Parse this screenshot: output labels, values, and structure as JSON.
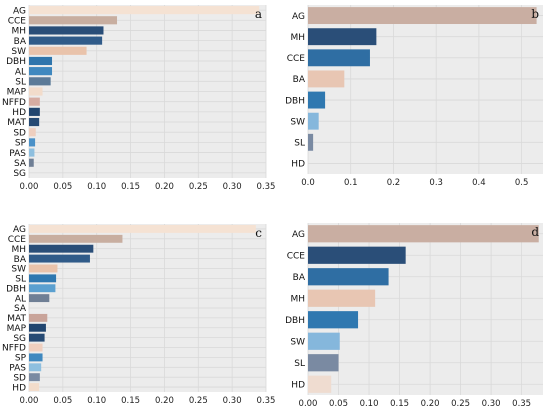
{
  "chart_data": [
    {
      "type": "bar",
      "orientation": "horizontal",
      "panel_label": "a",
      "categories": [
        "AG",
        "CCE",
        "MH",
        "BA",
        "SW",
        "DBH",
        "AL",
        "SL",
        "MAP",
        "NFFD",
        "HD",
        "MAT",
        "SD",
        "SP",
        "PAS",
        "SA",
        "SG"
      ],
      "values": [
        0.34,
        0.13,
        0.11,
        0.108,
        0.085,
        0.034,
        0.034,
        0.032,
        0.02,
        0.016,
        0.016,
        0.015,
        0.01,
        0.009,
        0.008,
        0.007,
        0.0
      ],
      "colors": [
        "#f5e2d3",
        "#c8aea0",
        "#2a4e78",
        "#305b89",
        "#e9c3ab",
        "#2f75ac",
        "#3f88bf",
        "#5b7a98",
        "#f2dccb",
        "#d6aca2",
        "#21456f",
        "#264a74",
        "#efcfbf",
        "#4a91c8",
        "#8ebfdf",
        "#6f7f95",
        "#e8d8cc"
      ],
      "xlim": [
        0,
        0.35
      ],
      "xticks": [
        "0.00",
        "0.05",
        "0.10",
        "0.15",
        "0.20",
        "0.25",
        "0.30",
        "0.35"
      ],
      "grid": true
    },
    {
      "type": "bar",
      "orientation": "horizontal",
      "panel_label": "b",
      "categories": [
        "AG",
        "MH",
        "CCE",
        "BA",
        "DBH",
        "SW",
        "SL",
        "HD"
      ],
      "values": [
        0.535,
        0.16,
        0.145,
        0.085,
        0.04,
        0.025,
        0.012,
        0.0
      ],
      "colors": [
        "#c9aea2",
        "#2a4e78",
        "#2f6ea3",
        "#e8c6b3",
        "#2f78b0",
        "#85b7dc",
        "#7a8aa2",
        "#eeddd2"
      ],
      "xlim": [
        0,
        0.55
      ],
      "xticks": [
        "0.0",
        "0.1",
        "0.2",
        "0.3",
        "0.4",
        "0.5"
      ],
      "grid": true
    },
    {
      "type": "bar",
      "orientation": "horizontal",
      "panel_label": "c",
      "categories": [
        "AG",
        "CCE",
        "MH",
        "BA",
        "SW",
        "SL",
        "DBH",
        "AL",
        "SA",
        "MAT",
        "MAP",
        "SG",
        "NFFD",
        "SP",
        "PAS",
        "SD",
        "HD"
      ],
      "values": [
        0.335,
        0.138,
        0.095,
        0.09,
        0.042,
        0.04,
        0.039,
        0.03,
        0.0,
        0.027,
        0.025,
        0.023,
        0.02,
        0.02,
        0.018,
        0.016,
        0.015
      ],
      "colors": [
        "#f5e2d3",
        "#c8aea0",
        "#2a4e78",
        "#305b89",
        "#e9c3ab",
        "#2f78b0",
        "#5ba0d0",
        "#6f7f95",
        "#ffffff",
        "#c9a49a",
        "#21456f",
        "#264a74",
        "#efcfbf",
        "#3f88bf",
        "#8ebfdf",
        "#7a8aa2",
        "#f2dccb"
      ],
      "xlim": [
        0,
        0.35
      ],
      "xticks": [
        "0.00",
        "0.05",
        "0.10",
        "0.15",
        "0.20",
        "0.25",
        "0.30",
        "0.35"
      ],
      "grid": true
    },
    {
      "type": "bar",
      "orientation": "horizontal",
      "panel_label": "d",
      "categories": [
        "AG",
        "CCE",
        "BA",
        "MH",
        "DBH",
        "SW",
        "SL",
        "HD"
      ],
      "values": [
        0.378,
        0.16,
        0.132,
        0.11,
        0.082,
        0.052,
        0.05,
        0.038
      ],
      "colors": [
        "#c9aea2",
        "#2a4e78",
        "#2f6ea3",
        "#e8c6b3",
        "#2f78b0",
        "#85b7dc",
        "#7a8aa2",
        "#efdcd0"
      ],
      "xlim": [
        0,
        0.385
      ],
      "xticks": [
        "0.00",
        "0.05",
        "0.10",
        "0.15",
        "0.20",
        "0.25",
        "0.30",
        "0.35"
      ],
      "grid": true
    }
  ]
}
